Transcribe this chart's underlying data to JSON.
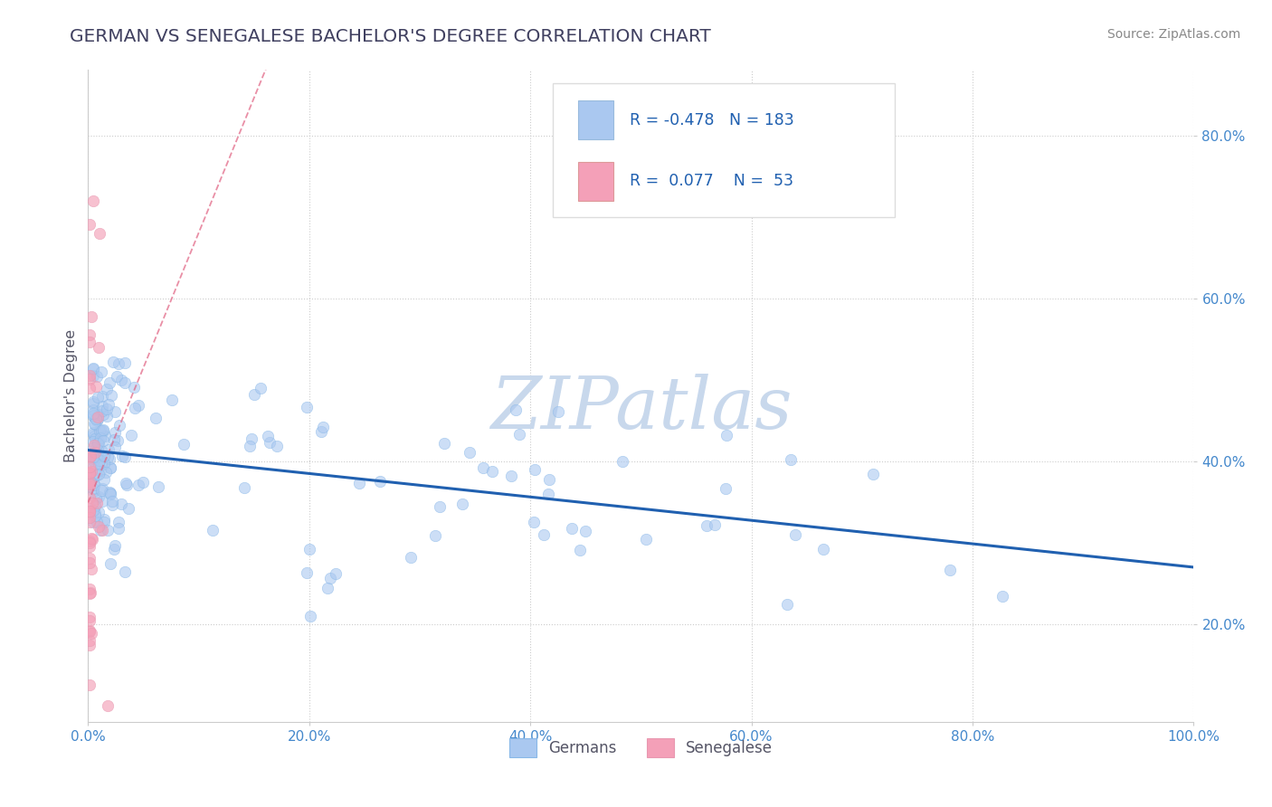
{
  "title": "GERMAN VS SENEGALESE BACHELOR'S DEGREE CORRELATION CHART",
  "source_text": "Source: ZipAtlas.com",
  "ylabel": "Bachelor's Degree",
  "watermark": "ZIPatlas",
  "xlim": [
    0.0,
    1.0
  ],
  "ylim": [
    0.08,
    0.88
  ],
  "xticks": [
    0.0,
    0.2,
    0.4,
    0.6,
    0.8,
    1.0
  ],
  "yticks": [
    0.2,
    0.4,
    0.6,
    0.8
  ],
  "german_R": -0.478,
  "german_N": 183,
  "senegalese_R": 0.077,
  "senegalese_N": 53,
  "german_color": "#aac8f0",
  "senegalese_color": "#f4a0b8",
  "german_line_color": "#2060b0",
  "senegalese_line_color": "#e06080",
  "legend_label_german": "Germans",
  "legend_label_senegalese": "Senegalese",
  "title_color": "#404060",
  "axis_label_color": "#555566",
  "tick_color": "#4488cc",
  "grid_color": "#cccccc",
  "background_color": "#ffffff",
  "watermark_color": "#c8d8ec",
  "legend_box_color": "#dddddd"
}
